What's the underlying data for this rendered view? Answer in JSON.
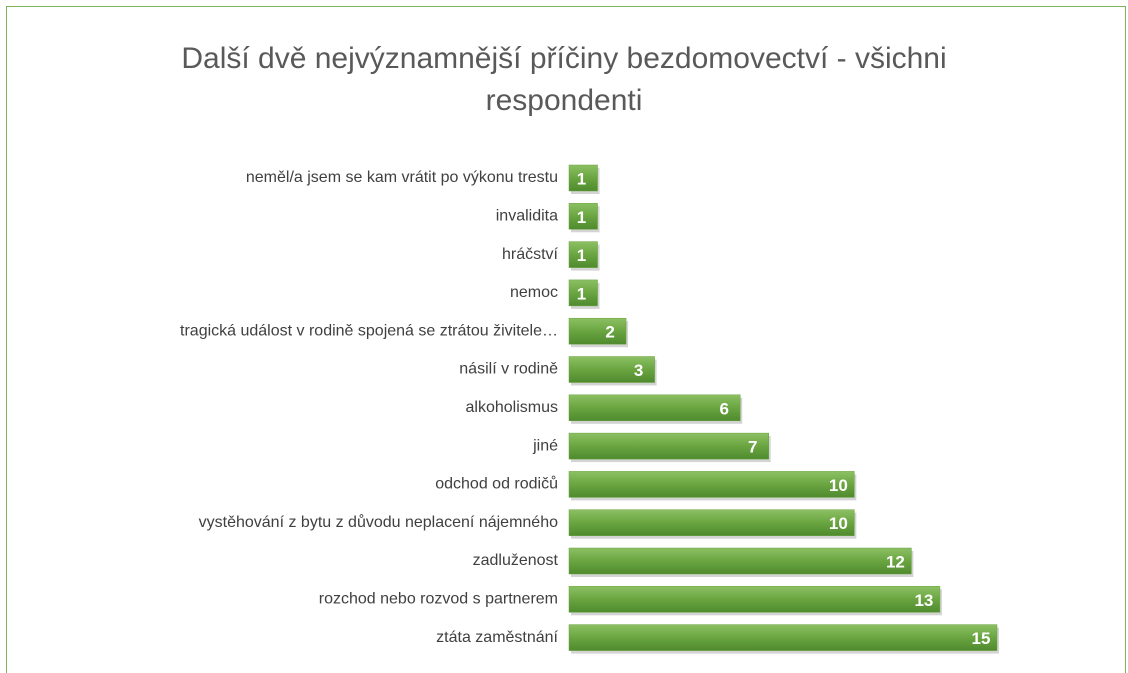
{
  "chart_data": {
    "type": "bar",
    "orientation": "horizontal",
    "title": "Další dvě nejvýznamnější příčiny bezdomovectví - všichni respondenti",
    "categories": [
      "neměl/a jsem se kam vrátit po výkonu trestu",
      "invalidita",
      "hráčství",
      "nemoc",
      "tragická událost v rodině spojená se ztrátou živitele…",
      "násilí v rodině",
      "alkoholismus",
      "jiné",
      "odchod od rodičů",
      "vystěhování z bytu z důvodu neplacení nájemného",
      "zadluženost",
      "rozchod nebo rozvod s partnerem",
      "ztáta zaměstnání"
    ],
    "values": [
      1,
      1,
      1,
      1,
      2,
      3,
      6,
      7,
      10,
      10,
      12,
      13,
      15
    ],
    "color": "#6aa541"
  }
}
